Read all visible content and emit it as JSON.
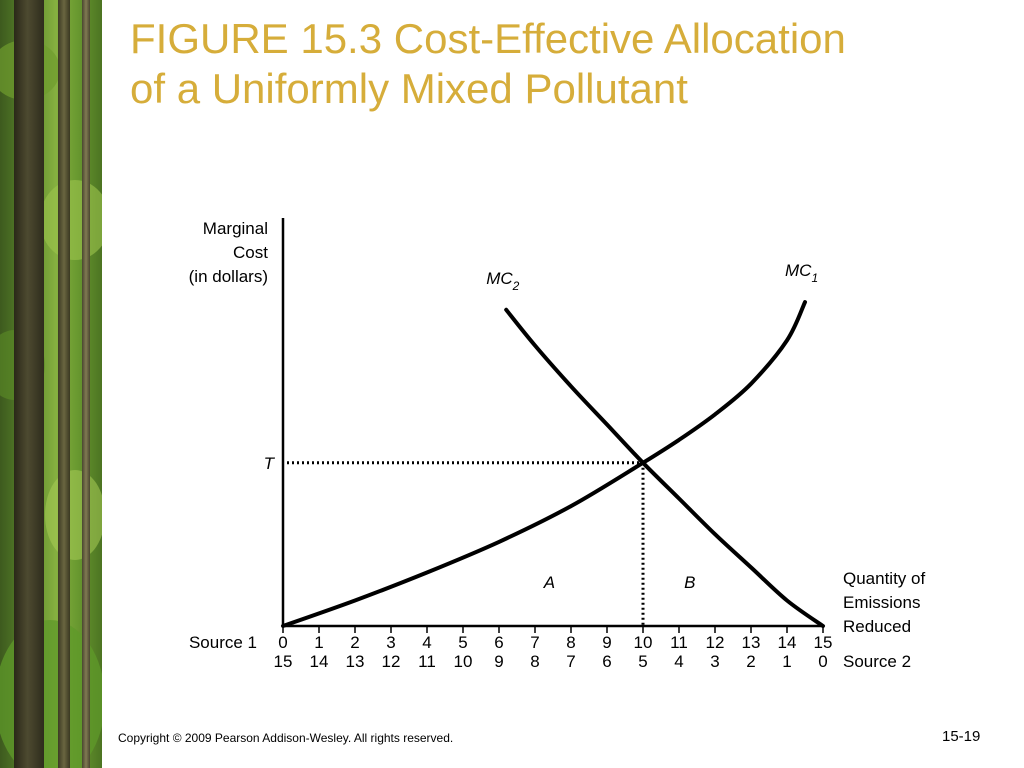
{
  "slide": {
    "title": "FIGURE 15.3  Cost-Effective Allocation\nof a Uniformly Mixed Pollutant",
    "copyright": "Copyright © 2009 Pearson Addison-Wesley. All rights reserved.",
    "page_number": "15-19",
    "title_color": "#d6ad3a"
  },
  "chart_data": {
    "type": "line",
    "ylabel": [
      "Marginal",
      "Cost",
      "(in dollars)"
    ],
    "xlabel": [
      "Quantity of",
      "Emissions",
      "Reduced"
    ],
    "x_axis_rows": [
      {
        "name": "Source 1",
        "ticks": [
          "0",
          "1",
          "2",
          "3",
          "4",
          "5",
          "6",
          "7",
          "8",
          "9",
          "10",
          "11",
          "12",
          "13",
          "14",
          "15"
        ]
      },
      {
        "name": "Source 2",
        "ticks": [
          "15",
          "14",
          "13",
          "12",
          "11",
          "10",
          "9",
          "8",
          "7",
          "6",
          "5",
          "4",
          "3",
          "2",
          "1",
          "0"
        ]
      }
    ],
    "xlim": [
      0,
      15
    ],
    "series": [
      {
        "name": "MC",
        "subscript": "1",
        "x": [
          0,
          2,
          4,
          6,
          8,
          10,
          11,
          12,
          13,
          14,
          14.5
        ],
        "y": [
          0,
          0.1,
          0.21,
          0.33,
          0.47,
          0.64,
          0.73,
          0.83,
          0.95,
          1.12,
          1.27
        ]
      },
      {
        "name": "MC",
        "subscript": "2",
        "x": [
          6.2,
          7,
          8,
          9,
          10,
          11,
          12,
          13,
          14,
          15
        ],
        "y": [
          1.24,
          1.1,
          0.94,
          0.79,
          0.64,
          0.5,
          0.36,
          0.23,
          0.1,
          0
        ]
      }
    ],
    "equilibrium": {
      "x": 10,
      "y": 0.64,
      "y_label": "T"
    },
    "areas": [
      {
        "label": "A",
        "x": 7.4,
        "y": 0.15
      },
      {
        "label": "B",
        "x": 11.3,
        "y": 0.15
      }
    ],
    "grid": false
  }
}
